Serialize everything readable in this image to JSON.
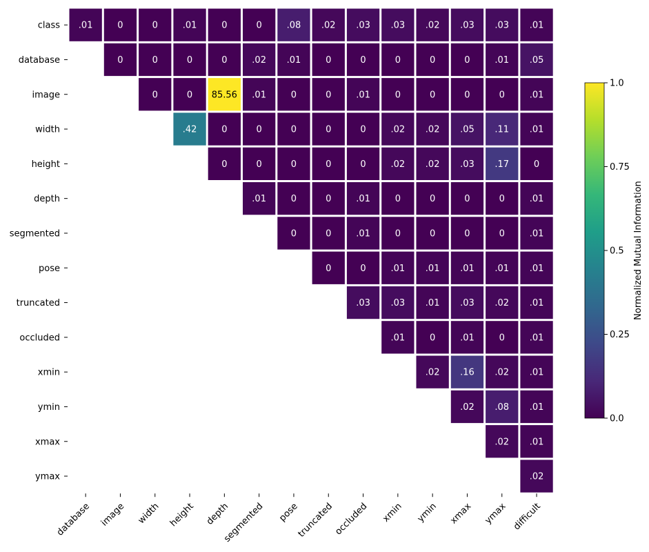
{
  "chart_data": {
    "type": "heatmap",
    "title": "",
    "xlabel": "",
    "ylabel": "",
    "x_categories": [
      "database",
      "image",
      "width",
      "height",
      "depth",
      "segmented",
      "pose",
      "truncated",
      "occluded",
      "xmin",
      "ymin",
      "xmax",
      "ymax",
      "difficult"
    ],
    "y_categories": [
      "class",
      "database",
      "image",
      "width",
      "height",
      "depth",
      "segmented",
      "pose",
      "truncated",
      "occluded",
      "xmin",
      "ymin",
      "xmax",
      "ymax"
    ],
    "cells": [
      {
        "row": 0,
        "col": 0,
        "value": 0.01,
        "label": ".01"
      },
      {
        "row": 0,
        "col": 1,
        "value": 0,
        "label": "0"
      },
      {
        "row": 0,
        "col": 2,
        "value": 0,
        "label": "0"
      },
      {
        "row": 0,
        "col": 3,
        "value": 0.01,
        "label": ".01"
      },
      {
        "row": 0,
        "col": 4,
        "value": 0,
        "label": "0"
      },
      {
        "row": 0,
        "col": 5,
        "value": 0,
        "label": "0"
      },
      {
        "row": 0,
        "col": 6,
        "value": 0.08,
        "label": ".08"
      },
      {
        "row": 0,
        "col": 7,
        "value": 0.02,
        "label": ".02"
      },
      {
        "row": 0,
        "col": 8,
        "value": 0.03,
        "label": ".03"
      },
      {
        "row": 0,
        "col": 9,
        "value": 0.03,
        "label": ".03"
      },
      {
        "row": 0,
        "col": 10,
        "value": 0.02,
        "label": ".02"
      },
      {
        "row": 0,
        "col": 11,
        "value": 0.03,
        "label": ".03"
      },
      {
        "row": 0,
        "col": 12,
        "value": 0.03,
        "label": ".03"
      },
      {
        "row": 0,
        "col": 13,
        "value": 0.01,
        "label": ".01"
      },
      {
        "row": 1,
        "col": 1,
        "value": 0,
        "label": "0"
      },
      {
        "row": 1,
        "col": 2,
        "value": 0,
        "label": "0"
      },
      {
        "row": 1,
        "col": 3,
        "value": 0,
        "label": "0"
      },
      {
        "row": 1,
        "col": 4,
        "value": 0,
        "label": "0"
      },
      {
        "row": 1,
        "col": 5,
        "value": 0.02,
        "label": ".02"
      },
      {
        "row": 1,
        "col": 6,
        "value": 0.01,
        "label": ".01"
      },
      {
        "row": 1,
        "col": 7,
        "value": 0,
        "label": "0"
      },
      {
        "row": 1,
        "col": 8,
        "value": 0,
        "label": "0"
      },
      {
        "row": 1,
        "col": 9,
        "value": 0,
        "label": "0"
      },
      {
        "row": 1,
        "col": 10,
        "value": 0,
        "label": "0"
      },
      {
        "row": 1,
        "col": 11,
        "value": 0,
        "label": "0"
      },
      {
        "row": 1,
        "col": 12,
        "value": 0.01,
        "label": ".01"
      },
      {
        "row": 1,
        "col": 13,
        "value": 0.05,
        "label": ".05"
      },
      {
        "row": 2,
        "col": 2,
        "value": 0,
        "label": "0"
      },
      {
        "row": 2,
        "col": 3,
        "value": 0,
        "label": "0"
      },
      {
        "row": 2,
        "col": 4,
        "value": 1.0,
        "label": "85.56"
      },
      {
        "row": 2,
        "col": 5,
        "value": 0.01,
        "label": ".01"
      },
      {
        "row": 2,
        "col": 6,
        "value": 0,
        "label": "0"
      },
      {
        "row": 2,
        "col": 7,
        "value": 0,
        "label": "0"
      },
      {
        "row": 2,
        "col": 8,
        "value": 0.01,
        "label": ".01"
      },
      {
        "row": 2,
        "col": 9,
        "value": 0,
        "label": "0"
      },
      {
        "row": 2,
        "col": 10,
        "value": 0,
        "label": "0"
      },
      {
        "row": 2,
        "col": 11,
        "value": 0,
        "label": "0"
      },
      {
        "row": 2,
        "col": 12,
        "value": 0,
        "label": "0"
      },
      {
        "row": 2,
        "col": 13,
        "value": 0.01,
        "label": ".01"
      },
      {
        "row": 3,
        "col": 3,
        "value": 0.42,
        "label": ".42"
      },
      {
        "row": 3,
        "col": 4,
        "value": 0,
        "label": "0"
      },
      {
        "row": 3,
        "col": 5,
        "value": 0,
        "label": "0"
      },
      {
        "row": 3,
        "col": 6,
        "value": 0,
        "label": "0"
      },
      {
        "row": 3,
        "col": 7,
        "value": 0,
        "label": "0"
      },
      {
        "row": 3,
        "col": 8,
        "value": 0,
        "label": "0"
      },
      {
        "row": 3,
        "col": 9,
        "value": 0.02,
        "label": ".02"
      },
      {
        "row": 3,
        "col": 10,
        "value": 0.02,
        "label": ".02"
      },
      {
        "row": 3,
        "col": 11,
        "value": 0.05,
        "label": ".05"
      },
      {
        "row": 3,
        "col": 12,
        "value": 0.11,
        "label": ".11"
      },
      {
        "row": 3,
        "col": 13,
        "value": 0.01,
        "label": ".01"
      },
      {
        "row": 4,
        "col": 4,
        "value": 0,
        "label": "0"
      },
      {
        "row": 4,
        "col": 5,
        "value": 0,
        "label": "0"
      },
      {
        "row": 4,
        "col": 6,
        "value": 0,
        "label": "0"
      },
      {
        "row": 4,
        "col": 7,
        "value": 0,
        "label": "0"
      },
      {
        "row": 4,
        "col": 8,
        "value": 0,
        "label": "0"
      },
      {
        "row": 4,
        "col": 9,
        "value": 0.02,
        "label": ".02"
      },
      {
        "row": 4,
        "col": 10,
        "value": 0.02,
        "label": ".02"
      },
      {
        "row": 4,
        "col": 11,
        "value": 0.03,
        "label": ".03"
      },
      {
        "row": 4,
        "col": 12,
        "value": 0.17,
        "label": ".17"
      },
      {
        "row": 4,
        "col": 13,
        "value": 0,
        "label": "0"
      },
      {
        "row": 5,
        "col": 5,
        "value": 0.01,
        "label": ".01"
      },
      {
        "row": 5,
        "col": 6,
        "value": 0,
        "label": "0"
      },
      {
        "row": 5,
        "col": 7,
        "value": 0,
        "label": "0"
      },
      {
        "row": 5,
        "col": 8,
        "value": 0.01,
        "label": ".01"
      },
      {
        "row": 5,
        "col": 9,
        "value": 0,
        "label": "0"
      },
      {
        "row": 5,
        "col": 10,
        "value": 0,
        "label": "0"
      },
      {
        "row": 5,
        "col": 11,
        "value": 0,
        "label": "0"
      },
      {
        "row": 5,
        "col": 12,
        "value": 0,
        "label": "0"
      },
      {
        "row": 5,
        "col": 13,
        "value": 0.01,
        "label": ".01"
      },
      {
        "row": 6,
        "col": 6,
        "value": 0,
        "label": "0"
      },
      {
        "row": 6,
        "col": 7,
        "value": 0,
        "label": "0"
      },
      {
        "row": 6,
        "col": 8,
        "value": 0.01,
        "label": ".01"
      },
      {
        "row": 6,
        "col": 9,
        "value": 0,
        "label": "0"
      },
      {
        "row": 6,
        "col": 10,
        "value": 0,
        "label": "0"
      },
      {
        "row": 6,
        "col": 11,
        "value": 0,
        "label": "0"
      },
      {
        "row": 6,
        "col": 12,
        "value": 0,
        "label": "0"
      },
      {
        "row": 6,
        "col": 13,
        "value": 0.01,
        "label": ".01"
      },
      {
        "row": 7,
        "col": 7,
        "value": 0,
        "label": "0"
      },
      {
        "row": 7,
        "col": 8,
        "value": 0,
        "label": "0"
      },
      {
        "row": 7,
        "col": 9,
        "value": 0.01,
        "label": ".01"
      },
      {
        "row": 7,
        "col": 10,
        "value": 0.01,
        "label": ".01"
      },
      {
        "row": 7,
        "col": 11,
        "value": 0.01,
        "label": ".01"
      },
      {
        "row": 7,
        "col": 12,
        "value": 0.01,
        "label": ".01"
      },
      {
        "row": 7,
        "col": 13,
        "value": 0.01,
        "label": ".01"
      },
      {
        "row": 8,
        "col": 8,
        "value": 0.03,
        "label": ".03"
      },
      {
        "row": 8,
        "col": 9,
        "value": 0.03,
        "label": ".03"
      },
      {
        "row": 8,
        "col": 10,
        "value": 0.01,
        "label": ".01"
      },
      {
        "row": 8,
        "col": 11,
        "value": 0.03,
        "label": ".03"
      },
      {
        "row": 8,
        "col": 12,
        "value": 0.02,
        "label": ".02"
      },
      {
        "row": 8,
        "col": 13,
        "value": 0.01,
        "label": ".01"
      },
      {
        "row": 9,
        "col": 9,
        "value": 0.01,
        "label": ".01"
      },
      {
        "row": 9,
        "col": 10,
        "value": 0,
        "label": "0"
      },
      {
        "row": 9,
        "col": 11,
        "value": 0.01,
        "label": ".01"
      },
      {
        "row": 9,
        "col": 12,
        "value": 0,
        "label": "0"
      },
      {
        "row": 9,
        "col": 13,
        "value": 0.01,
        "label": ".01"
      },
      {
        "row": 10,
        "col": 10,
        "value": 0.02,
        "label": ".02"
      },
      {
        "row": 10,
        "col": 11,
        "value": 0.16,
        "label": ".16"
      },
      {
        "row": 10,
        "col": 12,
        "value": 0.02,
        "label": ".02"
      },
      {
        "row": 10,
        "col": 13,
        "value": 0.01,
        "label": ".01"
      },
      {
        "row": 11,
        "col": 11,
        "value": 0.02,
        "label": ".02"
      },
      {
        "row": 11,
        "col": 12,
        "value": 0.08,
        "label": ".08"
      },
      {
        "row": 11,
        "col": 13,
        "value": 0.01,
        "label": ".01"
      },
      {
        "row": 12,
        "col": 12,
        "value": 0.02,
        "label": ".02"
      },
      {
        "row": 12,
        "col": 13,
        "value": 0.01,
        "label": ".01"
      },
      {
        "row": 13,
        "col": 13,
        "value": 0.02,
        "label": ".02"
      }
    ],
    "colorbar": {
      "label": "Normalized Mutual Information",
      "range": [
        0.0,
        1.0
      ],
      "ticks": [
        0.0,
        0.25,
        0.5,
        0.75,
        1.0
      ],
      "tick_labels": [
        "0.0",
        "0.25",
        "0.5",
        "0.75",
        "1.0"
      ],
      "colormap": "viridis",
      "placement": "right"
    },
    "grid": false,
    "cell_border_color": "#ffffff",
    "colormap_stops": [
      "#440154",
      "#482878",
      "#3e4989",
      "#31688e",
      "#26828e",
      "#1f9e89",
      "#35b779",
      "#6ece58",
      "#b5de2b",
      "#fde725"
    ]
  }
}
